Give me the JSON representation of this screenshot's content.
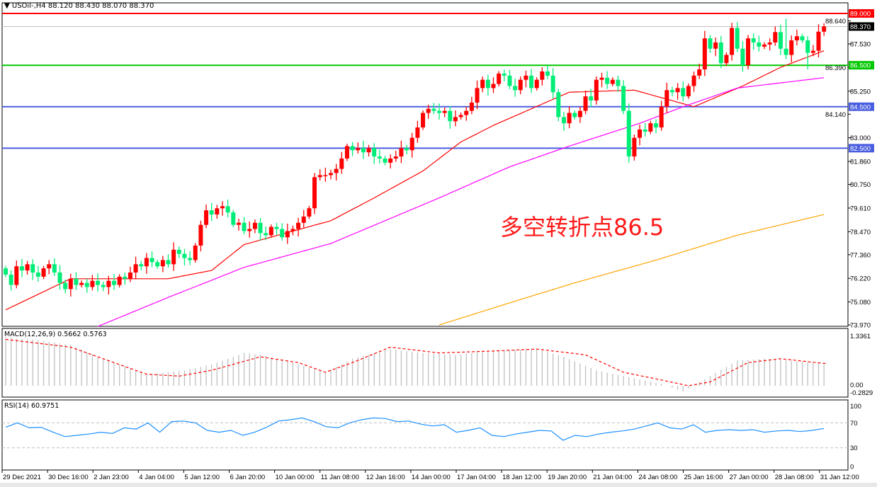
{
  "header": {
    "symbol": "USOil-,H4",
    "ohlc": "88.120 88.430 88.070 88.370",
    "menu_icon": "triangle-down-icon"
  },
  "annotation": "多空转折点86.5",
  "colors": {
    "up": "#ff0000",
    "down": "#00ee77",
    "ma_fast": "#ff0000",
    "ma_mid": "#ff00ff",
    "ma_slow": "#ffa500",
    "macd_hist": "#c0c0c0",
    "macd_signal": "#ff0000",
    "rsi": "#1e90ff",
    "level_red": "#ff0000",
    "level_green": "#00c800",
    "level_blue": "#4a5ee0",
    "bid_line": "#c0c0c0"
  },
  "chart_data": [
    {
      "type": "candlestick",
      "title": "USOil-,H4",
      "ylim": [
        73.97,
        89.0
      ],
      "grid": false,
      "y_ticks": [
        "88.640",
        "87.530",
        "86.390",
        "85.250",
        "84.140",
        "83.000",
        "81.860",
        "80.750",
        "79.610",
        "78.470",
        "77.360",
        "76.220",
        "75.080",
        "73.970"
      ],
      "x_ticks": [
        "29 Dec 2021",
        "30 Dec 16:00",
        "2 Jan 23:00",
        "4 Jan 04:00",
        "5 Jan 12:00",
        "6 Jan 20:00",
        "10 Jan 00:00",
        "11 Jan 08:00",
        "12 Jan 16:00",
        "14 Jan 00:00",
        "17 Jan 04:00",
        "18 Jan 12:00",
        "19 Jan 20:00",
        "21 Jan 04:00",
        "24 Jan 08:00",
        "25 Jan 16:00",
        "27 Jan 00:00",
        "28 Jan 08:00",
        "31 Jan 12:00"
      ],
      "closes": [
        76.4,
        75.9,
        76.8,
        76.6,
        76.9,
        76.5,
        76.3,
        76.7,
        76.9,
        76.5,
        76.0,
        75.7,
        76.2,
        75.9,
        76.0,
        75.8,
        76.1,
        75.9,
        75.8,
        76.1,
        75.9,
        76.3,
        76.2,
        76.5,
        76.9,
        76.8,
        77.2,
        77.0,
        76.8,
        77.1,
        76.9,
        77.6,
        77.4,
        77.2,
        77.1,
        77.8,
        78.8,
        79.5,
        79.3,
        79.6,
        79.7,
        79.4,
        78.8,
        78.9,
        78.5,
        78.6,
        78.9,
        78.4,
        78.3,
        78.7,
        78.6,
        78.2,
        78.5,
        78.6,
        78.9,
        79.2,
        79.6,
        81.1,
        81.2,
        81.2,
        81.3,
        81.5,
        82.0,
        82.6,
        82.4,
        82.5,
        82.3,
        82.5,
        82.1,
        82.0,
        81.8,
        82.0,
        82.1,
        82.5,
        82.4,
        83.0,
        83.5,
        84.2,
        84.4,
        84.3,
        84.2,
        84.3,
        83.8,
        84.0,
        84.1,
        84.3,
        84.7,
        85.4,
        85.8,
        85.4,
        85.6,
        86.1,
        86.0,
        85.5,
        85.3,
        85.8,
        86.0,
        85.4,
        85.8,
        86.2,
        86.0,
        85.2,
        84.0,
        83.7,
        84.2,
        84.0,
        84.3,
        85.0,
        84.8,
        85.8,
        85.9,
        85.6,
        85.8,
        85.5,
        84.3,
        82.1,
        83.0,
        83.4,
        83.3,
        83.7,
        83.5,
        84.5,
        85.3,
        85.2,
        85.4,
        85.0,
        85.5,
        86.0,
        86.3,
        87.8,
        87.3,
        87.6,
        86.6,
        87.0,
        88.3,
        87.3,
        86.5,
        87.8,
        87.6,
        87.4,
        87.5,
        87.6,
        88.1,
        87.3,
        87.0,
        87.7,
        87.9,
        87.7,
        87.1,
        87.2,
        88.12,
        88.37
      ],
      "wick_overrides": [
        {
          "bar": 115,
          "low": 81.8
        },
        {
          "bar": 144,
          "high": 88.75
        },
        {
          "bar": 134,
          "high": 88.55
        },
        {
          "bar": 148,
          "low": 86.3
        }
      ],
      "moving_averages": [
        {
          "color_key": "ma_fast",
          "points": [
            [
              0,
              74.7
            ],
            [
              12,
              76.2
            ],
            [
              30,
              76.2
            ],
            [
              38,
              76.6
            ],
            [
              44,
              77.85
            ],
            [
              60,
              79.0
            ],
            [
              68,
              80.1
            ],
            [
              77,
              81.4
            ],
            [
              84,
              82.8
            ],
            [
              90,
              83.6
            ],
            [
              104,
              85.2
            ],
            [
              116,
              85.3
            ],
            [
              127,
              84.5
            ],
            [
              136,
              85.5
            ],
            [
              143,
              86.4
            ],
            [
              151,
              87.2
            ]
          ]
        },
        {
          "color_key": "ma_mid",
          "points": [
            [
              17,
              73.9
            ],
            [
              30,
              75.3
            ],
            [
              44,
              76.75
            ],
            [
              60,
              77.9
            ],
            [
              80,
              80.1
            ],
            [
              93,
              81.6
            ],
            [
              104,
              82.6
            ],
            [
              117,
              83.7
            ],
            [
              125,
              84.5
            ],
            [
              135,
              85.4
            ],
            [
              151,
              85.9
            ]
          ]
        },
        {
          "color_key": "ma_slow",
          "points": [
            [
              80,
              73.97
            ],
            [
              95,
              75.2
            ],
            [
              105,
              76.0
            ],
            [
              120,
              77.1
            ],
            [
              135,
              78.3
            ],
            [
              151,
              79.3
            ]
          ]
        }
      ],
      "levels": [
        {
          "value": 89.0,
          "label": "89.000",
          "color_key": "level_red"
        },
        {
          "value": 86.5,
          "label": "86.500",
          "color_key": "level_green"
        },
        {
          "value": 84.5,
          "label": "84.500",
          "color_key": "level_blue"
        },
        {
          "value": 82.5,
          "label": "82.500",
          "color_key": "level_blue"
        }
      ],
      "bid": {
        "value": 88.37,
        "label": "88.370"
      }
    },
    {
      "type": "bar",
      "title": "MACD(12,26,9) 0.5662 0.5763",
      "ylim": [
        -0.2829,
        1.3361
      ],
      "y_ticks": [
        "1.3361",
        "0.00",
        "-0.2829"
      ],
      "macd_points": [
        [
          0,
          1.25
        ],
        [
          5,
          1.2
        ],
        [
          12,
          1.05
        ],
        [
          18,
          0.7
        ],
        [
          26,
          0.3
        ],
        [
          33,
          0.4
        ],
        [
          38,
          0.55
        ],
        [
          44,
          0.85
        ],
        [
          47,
          0.8
        ],
        [
          53,
          0.6
        ],
        [
          59,
          0.35
        ],
        [
          64,
          0.7
        ],
        [
          71,
          0.95
        ],
        [
          77,
          0.85
        ],
        [
          83,
          0.8
        ],
        [
          90,
          0.92
        ],
        [
          98,
          0.95
        ],
        [
          103,
          0.75
        ],
        [
          109,
          0.4
        ],
        [
          114,
          0.25
        ],
        [
          121,
          0.05
        ],
        [
          125,
          -0.15
        ],
        [
          130,
          0.25
        ],
        [
          135,
          0.65
        ],
        [
          140,
          0.7
        ],
        [
          145,
          0.65
        ],
        [
          151,
          0.57
        ]
      ],
      "signal_points": [
        [
          0,
          1.2
        ],
        [
          12,
          1.0
        ],
        [
          18,
          0.7
        ],
        [
          26,
          0.3
        ],
        [
          32,
          0.25
        ],
        [
          38,
          0.4
        ],
        [
          47,
          0.75
        ],
        [
          54,
          0.6
        ],
        [
          59,
          0.35
        ],
        [
          64,
          0.6
        ],
        [
          71,
          1.0
        ],
        [
          80,
          0.85
        ],
        [
          90,
          0.9
        ],
        [
          98,
          0.95
        ],
        [
          107,
          0.8
        ],
        [
          114,
          0.35
        ],
        [
          121,
          0.15
        ],
        [
          126,
          0.0
        ],
        [
          130,
          0.1
        ],
        [
          137,
          0.6
        ],
        [
          143,
          0.7
        ],
        [
          151,
          0.58
        ]
      ]
    },
    {
      "type": "line",
      "title": "RSI(14) 60.9751",
      "ylim": [
        0,
        100
      ],
      "y_ticks": [
        "100",
        "70",
        "30",
        "0"
      ],
      "levels": [
        70,
        30
      ],
      "values": [
        63,
        70,
        62,
        63,
        55,
        48,
        50,
        52,
        55,
        53,
        62,
        60,
        70,
        55,
        72,
        73,
        70,
        58,
        55,
        58,
        50,
        55,
        63,
        73,
        75,
        78,
        72,
        64,
        62,
        70,
        75,
        78,
        77,
        72,
        73,
        68,
        65,
        67,
        55,
        58,
        62,
        50,
        48,
        52,
        55,
        58,
        57,
        42,
        50,
        48,
        52,
        55,
        57,
        60,
        65,
        70,
        62,
        60,
        67,
        55,
        58,
        59,
        58,
        59,
        55,
        57,
        58,
        56,
        58,
        61
      ]
    }
  ]
}
